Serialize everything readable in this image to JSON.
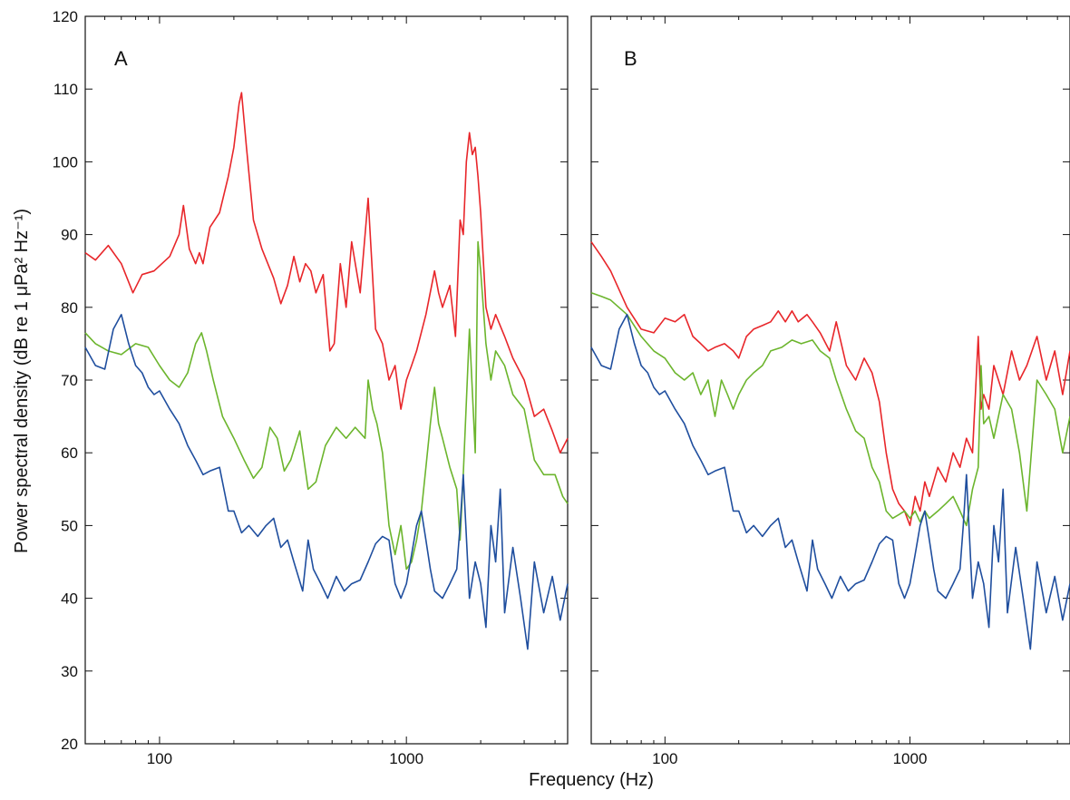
{
  "chart_data": [
    {
      "type": "line",
      "panel_label": "A",
      "xlabel": "Frequency (Hz)",
      "ylabel": "Power spectral density (dB re 1 μPa² Hz⁻¹)",
      "xscale": "log",
      "xlim": [
        50,
        4500
      ],
      "ylim": [
        20,
        120
      ],
      "x_ticks": [
        100,
        1000
      ],
      "y_ticks": [
        20,
        30,
        40,
        50,
        60,
        70,
        80,
        90,
        100,
        110,
        120
      ],
      "grid": false,
      "series": [
        {
          "color": "#e8262a",
          "x": [
            50,
            55,
            62,
            70,
            78,
            85,
            95,
            110,
            120,
            125,
            132,
            140,
            145,
            150,
            160,
            175,
            190,
            200,
            210,
            215,
            225,
            240,
            260,
            290,
            310,
            330,
            350,
            370,
            390,
            410,
            430,
            460,
            490,
            510,
            540,
            570,
            600,
            650,
            700,
            750,
            800,
            850,
            900,
            950,
            1000,
            1050,
            1100,
            1200,
            1300,
            1350,
            1400,
            1500,
            1580,
            1650,
            1700,
            1750,
            1800,
            1850,
            1900,
            1950,
            2000,
            2100,
            2200,
            2300,
            2500,
            2700,
            3000,
            3300,
            3600,
            3900,
            4200,
            4500
          ],
          "values": [
            87.5,
            86.5,
            88.5,
            86,
            82,
            84.5,
            85,
            87,
            90,
            94,
            88,
            86,
            87.5,
            86,
            91,
            93,
            98,
            102,
            108,
            109.5,
            102,
            92,
            88,
            84,
            80.5,
            83,
            87,
            83.5,
            86,
            85,
            82,
            84.5,
            74,
            75,
            86,
            80,
            89,
            82,
            95,
            77,
            75,
            70,
            72,
            66,
            70,
            72,
            74,
            79,
            85,
            82,
            80,
            83,
            76,
            92,
            90,
            100,
            104,
            101,
            102,
            98,
            93,
            80,
            77,
            79,
            76,
            73,
            70,
            65,
            66,
            63,
            60,
            62
          ]
        },
        {
          "color": "#6cb52d",
          "x": [
            50,
            55,
            62,
            70,
            80,
            90,
            100,
            110,
            120,
            130,
            140,
            148,
            155,
            165,
            180,
            200,
            220,
            240,
            260,
            280,
            300,
            320,
            340,
            370,
            400,
            430,
            470,
            520,
            570,
            620,
            680,
            700,
            730,
            760,
            800,
            850,
            900,
            950,
            1000,
            1050,
            1100,
            1150,
            1200,
            1250,
            1300,
            1350,
            1400,
            1500,
            1600,
            1650,
            1700,
            1800,
            1900,
            1950,
            2000,
            2100,
            2200,
            2300,
            2500,
            2700,
            3000,
            3300,
            3600,
            4000,
            4300,
            4500
          ],
          "values": [
            76.5,
            75,
            74,
            73.5,
            75,
            74.5,
            72,
            70,
            69,
            71,
            75,
            76.5,
            74,
            70,
            65,
            62,
            59,
            56.5,
            58,
            63.5,
            62,
            57.5,
            59,
            63,
            55,
            56,
            61,
            63.5,
            62,
            63.5,
            62,
            70,
            66,
            64,
            60,
            50,
            46,
            50,
            44,
            45,
            48,
            52,
            58,
            64,
            69,
            64,
            62,
            58,
            55,
            48,
            57,
            77,
            60,
            89,
            85,
            75,
            70,
            74,
            72,
            68,
            66,
            59,
            57,
            57,
            54,
            53
          ]
        },
        {
          "color": "#1f4e9e",
          "x": [
            50,
            55,
            60,
            65,
            70,
            75,
            80,
            85,
            90,
            95,
            100,
            110,
            120,
            130,
            140,
            150,
            160,
            175,
            190,
            200,
            215,
            230,
            250,
            270,
            290,
            310,
            330,
            350,
            380,
            400,
            420,
            450,
            480,
            520,
            560,
            600,
            650,
            700,
            750,
            800,
            850,
            900,
            950,
            1000,
            1050,
            1100,
            1150,
            1200,
            1250,
            1300,
            1400,
            1500,
            1600,
            1650,
            1700,
            1800,
            1900,
            2000,
            2100,
            2200,
            2300,
            2400,
            2500,
            2700,
            2900,
            3100,
            3300,
            3600,
            3900,
            4200,
            4500
          ],
          "values": [
            74.5,
            72,
            71.5,
            77,
            79,
            75,
            72,
            71,
            69,
            68,
            68.5,
            66,
            64,
            61,
            59,
            57,
            57.5,
            58,
            52,
            52,
            49,
            50,
            48.5,
            50,
            51,
            47,
            48,
            45,
            41,
            48,
            44,
            42,
            40,
            43,
            41,
            42,
            42.5,
            45,
            47.5,
            48.5,
            48,
            42,
            40,
            42,
            46,
            50,
            52,
            48,
            44,
            41,
            40,
            42,
            44,
            50,
            57,
            40,
            45,
            42,
            36,
            50,
            45,
            55,
            38,
            47,
            40,
            33,
            45,
            38,
            43,
            37,
            42
          ]
        }
      ]
    },
    {
      "type": "line",
      "panel_label": "B",
      "xlabel": "Frequency (Hz)",
      "xscale": "log",
      "xlim": [
        50,
        4500
      ],
      "ylim": [
        20,
        120
      ],
      "x_ticks": [
        100,
        1000
      ],
      "y_ticks": [
        20,
        30,
        40,
        50,
        60,
        70,
        80,
        90,
        100,
        110,
        120
      ],
      "grid": false,
      "series": [
        {
          "color": "#e8262a",
          "x": [
            50,
            55,
            60,
            70,
            80,
            90,
            100,
            110,
            120,
            130,
            140,
            150,
            160,
            175,
            190,
            200,
            215,
            230,
            250,
            270,
            290,
            310,
            330,
            350,
            380,
            400,
            430,
            470,
            500,
            550,
            600,
            650,
            700,
            750,
            800,
            850,
            900,
            950,
            1000,
            1050,
            1100,
            1150,
            1200,
            1300,
            1400,
            1500,
            1600,
            1700,
            1800,
            1900,
            1950,
            2000,
            2100,
            2200,
            2400,
            2600,
            2800,
            3000,
            3300,
            3600,
            3900,
            4200,
            4500
          ],
          "values": [
            89,
            87,
            85,
            80,
            77,
            76.5,
            78.5,
            78,
            79,
            76,
            75,
            74,
            74.5,
            75,
            74,
            73,
            76,
            77,
            77.5,
            78,
            79.5,
            78,
            79.5,
            78,
            79,
            78,
            76.5,
            74,
            78,
            72,
            70,
            73,
            71,
            67,
            60,
            55,
            53,
            52,
            50,
            54,
            52,
            56,
            54,
            58,
            56,
            60,
            58,
            62,
            60,
            76,
            66,
            68,
            66,
            72,
            68,
            74,
            70,
            72,
            76,
            70,
            74,
            68,
            74
          ]
        },
        {
          "color": "#6cb52d",
          "x": [
            50,
            55,
            60,
            70,
            80,
            90,
            100,
            110,
            120,
            130,
            140,
            150,
            160,
            170,
            180,
            190,
            200,
            215,
            230,
            250,
            270,
            300,
            330,
            360,
            400,
            430,
            470,
            500,
            550,
            600,
            650,
            700,
            750,
            800,
            850,
            900,
            950,
            1000,
            1050,
            1100,
            1150,
            1200,
            1300,
            1400,
            1500,
            1600,
            1700,
            1800,
            1900,
            1950,
            2000,
            2100,
            2200,
            2400,
            2600,
            2800,
            3000,
            3300,
            3600,
            3900,
            4200,
            4500
          ],
          "values": [
            82,
            81.5,
            81,
            79,
            76,
            74,
            73,
            71,
            70,
            71,
            68,
            70,
            65,
            70,
            68,
            66,
            68,
            70,
            71,
            72,
            74,
            74.5,
            75.5,
            75,
            75.5,
            74,
            73,
            70,
            66,
            63,
            62,
            58,
            56,
            52,
            51,
            51.5,
            52,
            51,
            52,
            50.5,
            52,
            51,
            52,
            53,
            54,
            52,
            50,
            55,
            58,
            72,
            64,
            65,
            62,
            68,
            66,
            60,
            52,
            70,
            68,
            66,
            60,
            65
          ]
        },
        {
          "color": "#1f4e9e",
          "x": [
            50,
            55,
            60,
            65,
            70,
            75,
            80,
            85,
            90,
            95,
            100,
            110,
            120,
            130,
            140,
            150,
            160,
            175,
            190,
            200,
            215,
            230,
            250,
            270,
            290,
            310,
            330,
            350,
            380,
            400,
            420,
            450,
            480,
            520,
            560,
            600,
            650,
            700,
            750,
            800,
            850,
            900,
            950,
            1000,
            1050,
            1100,
            1150,
            1200,
            1250,
            1300,
            1400,
            1500,
            1600,
            1650,
            1700,
            1800,
            1900,
            2000,
            2100,
            2200,
            2300,
            2400,
            2500,
            2700,
            2900,
            3100,
            3300,
            3600,
            3900,
            4200,
            4500
          ],
          "values": [
            74.5,
            72,
            71.5,
            77,
            79,
            75,
            72,
            71,
            69,
            68,
            68.5,
            66,
            64,
            61,
            59,
            57,
            57.5,
            58,
            52,
            52,
            49,
            50,
            48.5,
            50,
            51,
            47,
            48,
            45,
            41,
            48,
            44,
            42,
            40,
            43,
            41,
            42,
            42.5,
            45,
            47.5,
            48.5,
            48,
            42,
            40,
            42,
            46,
            50,
            52,
            48,
            44,
            41,
            40,
            42,
            44,
            50,
            57,
            40,
            45,
            42,
            36,
            50,
            45,
            55,
            38,
            47,
            40,
            33,
            45,
            38,
            43,
            37,
            42
          ]
        }
      ]
    }
  ]
}
